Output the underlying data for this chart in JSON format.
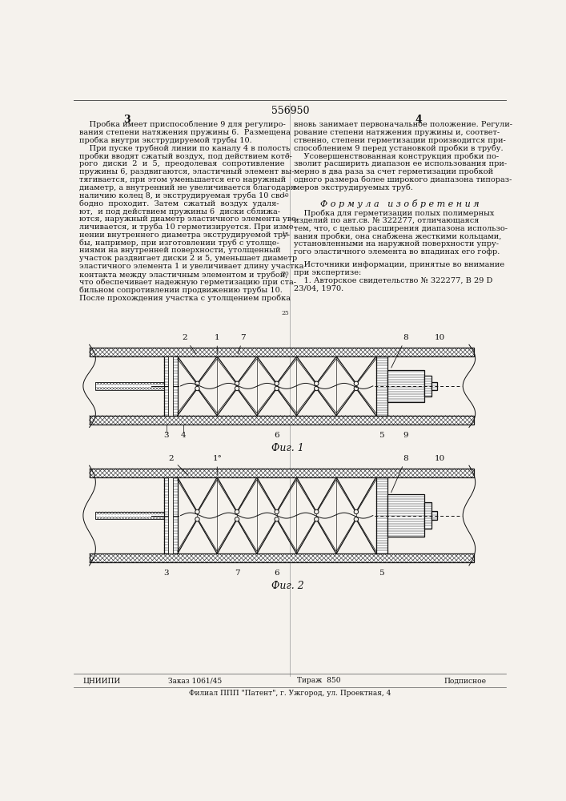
{
  "patent_number": "556950",
  "page_left": "3",
  "page_right": "4",
  "left_column_text": [
    "    Пробка имеет приспособление 9 для регулиро-",
    "вания степени натяжения пружины 6.  Размещена",
    "пробка внутри экструдируемой трубы 10.",
    "    При пуске трубной линии по каналу 4 в полость",
    "пробки вводят сжатый воздух, под действием кото-",
    "рого  диски  2  и  5,  преодолевая  сопротивление",
    "пружины 6, раздвигаются, эластичный элемент вы-",
    "тягивается, при этом уменьшается его наружный",
    "диаметр, а внутренний не увеличивается благодаря",
    "наличию колец 8, и экструдируемая труба 10 сво-",
    "бодно  проходит.  Затем  сжатый  воздух  удаля-",
    "ют,  и под действием пружины 6  диски сближа-",
    "ются, наружный диаметр эластичного элемента уве-",
    "личивается, и труба 10 герметизируется. При изме-",
    "нении внутреннего диаметра экструдируемой тру-",
    "бы, например, при изготовлении труб с утолще-",
    "ниями на внутренней поверхности, утолщенный",
    "участок раздвигает диски 2 и 5, уменьшает диаметр",
    "эластичного элемента 1 и увеличивает длину участка",
    "контакта между эластичным элементом и трубой,",
    "что обеспечивает надежную герметизацию при ста-",
    "бильном сопротивлении продвижению трубы 10.",
    "После прохождения участка с утолщением пробка"
  ],
  "right_column_text": [
    "вновь занимает первоначальное положение. Регули-",
    "рование степени натяжения пружины и, соответ-",
    "ственно, степени герметизации производится при-",
    "способлением 9 перед установкой пробки в трубу.",
    "    Усовершенствованная конструкция пробки по-",
    "зволит расширить диапазон ее использования при-",
    "мерно в два раза за счет герметизации пробкой",
    "одного размера более широкого диапазона типораз-",
    "меров экструдируемых труб."
  ],
  "formula_header": "Ф о р м у л а   и з о б р е т е н и я",
  "formula_text": [
    "    Пробка для герметизации полых полимерных",
    "изделий по авт.св. № 322277, отличающаяся",
    "тем, что, с целью расширения диапазона использо-",
    "вания пробки, она снабжена жесткими кольцами,",
    "установленными на наружной поверхности упру-",
    "гого эластичного элемента во впадинах его гофр."
  ],
  "sources_header": "    Источники информации, принятые во внимание",
  "sources_subheader": "при экспертизе:",
  "sources_text": [
    "    1. Авторское свидетельство № 322277, В 29 D",
    "23/04, 1970."
  ],
  "fig1_label": "Фиг. 1",
  "fig2_label": "Фиг. 2",
  "bottom_left": "ЦНИИПИ",
  "bottom_order": "Заказ 1061/45",
  "bottom_print": "Тираж  850",
  "bottom_sign": "Подписное",
  "bottom_footer": "Филиал ППП \"Патент\", г. Ужгород, ул. Проектная, 4",
  "bg_color": "#f5f2ed",
  "line_color": "#111111"
}
